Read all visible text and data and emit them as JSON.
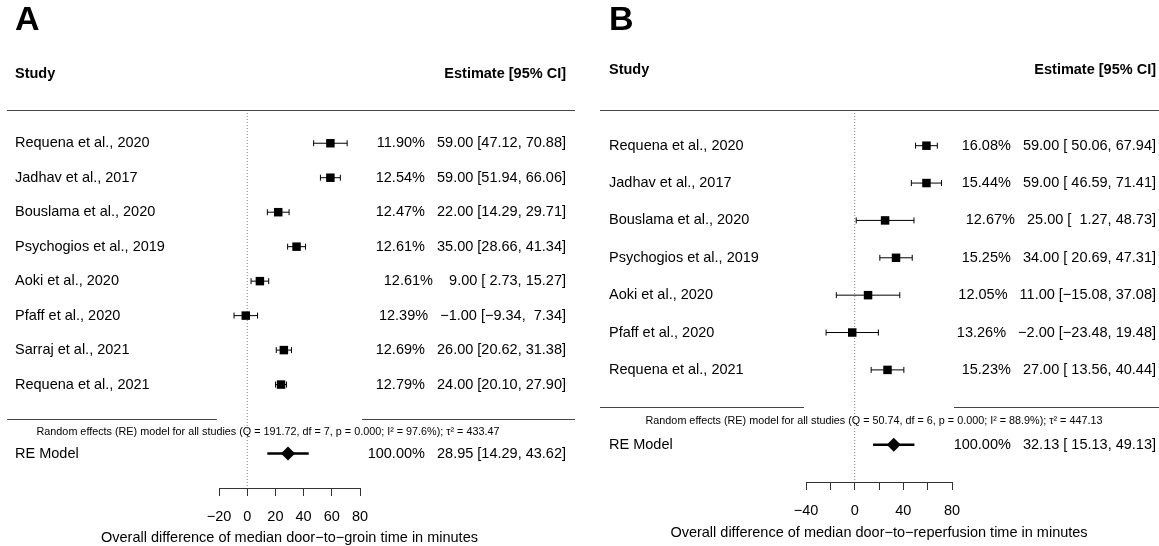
{
  "chart_data": [
    {
      "type": "scatter",
      "orientation": "horizontal",
      "title": "A",
      "ylabel": "Study",
      "xlabel": "Overall difference of median door−to−groin time in minutes",
      "categories": [
        "Requena et al., 2020",
        "Jadhav et al., 2017",
        "Bouslama et al., 2020",
        "Psychogios et al., 2019",
        "Aoki et al., 2020",
        "Pfaff et al., 2020",
        "Sarraj et al., 2021",
        "Requena et al., 2021",
        "RE Model"
      ],
      "series": [
        {
          "color": "#000000",
          "marker": "square",
          "values": [
            59,
            59,
            22,
            35,
            9,
            -1,
            26,
            24,
            null
          ],
          "errors": [
            [
              47.12,
              70.88
            ],
            [
              51.94,
              66.06
            ],
            [
              14.29,
              29.71
            ],
            [
              28.66,
              41.34
            ],
            [
              2.73,
              15.27
            ],
            [
              -9.34,
              7.34
            ],
            [
              20.62,
              31.38
            ],
            [
              20.1,
              27.9
            ],
            null
          ],
          "value_labels": [
            "11.90%   59.00 [47.12, 70.88]",
            "12.54%   59.00 [51.94, 66.06]",
            "12.47%   22.00 [14.29, 29.71]",
            "12.61%   35.00 [28.66, 41.34]",
            "12.61%    9.00 [ 2.73, 15.27]",
            "12.39%   −1.00 [−9.34,  7.34]",
            "12.69%   26.00 [20.62, 31.38]",
            "12.79%   24.00 [20.10, 27.90]",
            null
          ]
        },
        {
          "color": "#000000",
          "marker": "diamond",
          "values": [
            null,
            null,
            null,
            null,
            null,
            null,
            null,
            null,
            28.95
          ],
          "errors": [
            null,
            null,
            null,
            null,
            null,
            null,
            null,
            null,
            [
              14.29,
              43.62
            ]
          ]
        }
      ],
      "xlim": [
        -20,
        80
      ],
      "xticks": [
        {
          "value": -20,
          "label": "−20"
        },
        0,
        20,
        40,
        60,
        80
      ],
      "ref_lines": [
        {
          "axis": "x",
          "value": 0,
          "color": "#808080",
          "line_style": "dotted"
        }
      ],
      "annotations": [
        "Estimate [95% CI]",
        "Random effects (RE) model for all studies (Q = 191.72, df = 7, p = 0.000; I² = 97.6%); τ² = 433.47",
        "100.00%   28.95 [14.29, 43.62]"
      ]
    },
    {
      "type": "scatter",
      "orientation": "horizontal",
      "title": "B",
      "ylabel": "Study",
      "xlabel": "Overall difference of median door−to−reperfusion time in minutes",
      "categories": [
        "Requena et al., 2020",
        "Jadhav et al., 2017",
        "Bouslama et al., 2020",
        "Psychogios et al., 2019",
        "Aoki et al., 2020",
        "Pfaff et al., 2020",
        "Requena et al., 2021",
        "RE Model"
      ],
      "series": [
        {
          "color": "#000000",
          "marker": "square",
          "values": [
            59,
            59,
            25,
            34,
            11,
            -2,
            27,
            null
          ],
          "errors": [
            [
              50.06,
              67.94
            ],
            [
              46.59,
              71.41
            ],
            [
              1.27,
              48.73
            ],
            [
              20.69,
              47.31
            ],
            [
              -15.08,
              37.08
            ],
            [
              -23.48,
              19.48
            ],
            [
              13.56,
              40.44
            ],
            null
          ],
          "value_labels": [
            "16.08%   59.00 [ 50.06, 67.94]",
            "15.44%   59.00 [ 46.59, 71.41]",
            "12.67%   25.00 [  1.27, 48.73]",
            "15.25%   34.00 [ 20.69, 47.31]",
            "12.05%   11.00 [−15.08, 37.08]",
            "13.26%   −2.00 [−23.48, 19.48]",
            "15.23%   27.00 [ 13.56, 40.44]",
            null
          ]
        },
        {
          "color": "#000000",
          "marker": "diamond",
          "values": [
            null,
            null,
            null,
            null,
            null,
            null,
            null,
            32.13
          ],
          "errors": [
            null,
            null,
            null,
            null,
            null,
            null,
            null,
            [
              15.13,
              49.13
            ]
          ]
        }
      ],
      "xlim": [
        -40,
        80
      ],
      "xticks": [
        {
          "value": -40,
          "label": "−40"
        },
        {
          "value": -20,
          "label": null
        },
        0,
        {
          "value": 20,
          "label": null
        },
        40,
        {
          "value": 60,
          "label": null
        },
        80
      ],
      "ref_lines": [
        {
          "axis": "x",
          "value": 0,
          "color": "#808080",
          "line_style": "dotted"
        }
      ],
      "annotations": [
        "Estimate [95% CI]",
        "Random effects (RE) model for all studies (Q = 50.74, df = 6, p = 0.000; I² = 88.9%); τ² = 447.13",
        "100.00%   32.13 [ 15.13, 49.13]"
      ]
    }
  ]
}
